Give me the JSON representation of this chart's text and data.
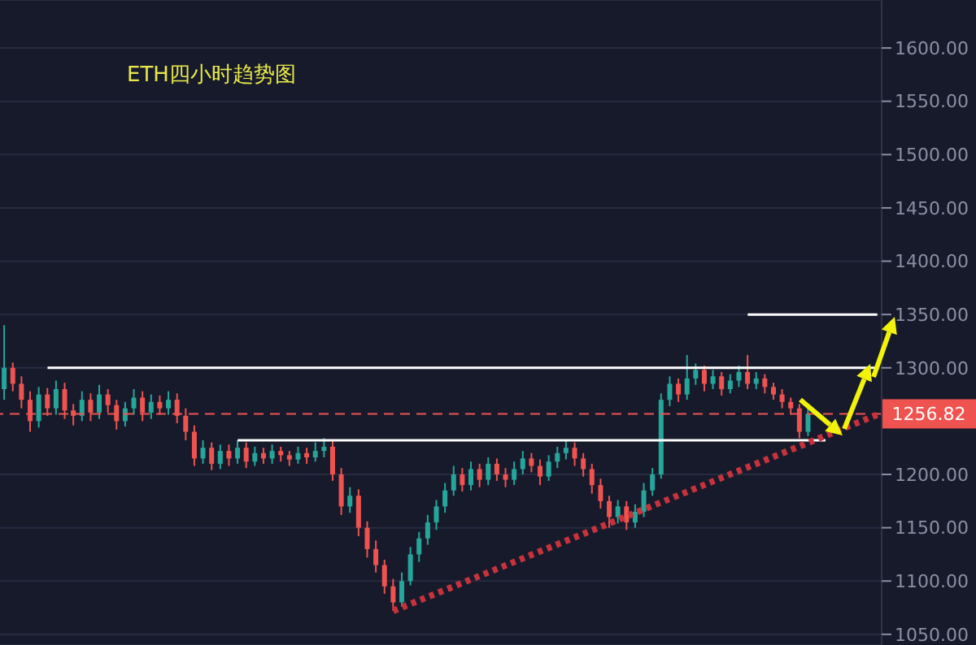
{
  "chart_data": {
    "type": "candlestick",
    "title": "ETH四小时趋势图",
    "categories": [
      null,
      null,
      null,
      null,
      null,
      null,
      null,
      null,
      null,
      null,
      null,
      null,
      null,
      null,
      null,
      null,
      null,
      null,
      null,
      null,
      null,
      null,
      null,
      null,
      null,
      null,
      null,
      null,
      null,
      null,
      null,
      null,
      null,
      null,
      null,
      null,
      null,
      null,
      null,
      null,
      null,
      null,
      null,
      null,
      null,
      null,
      null,
      null,
      null,
      null,
      null,
      null,
      null,
      null,
      null,
      null,
      null,
      null,
      null,
      null,
      null,
      null,
      null,
      null,
      null,
      null,
      null,
      null,
      null,
      null,
      null,
      null,
      null,
      null,
      null,
      null,
      null,
      null,
      null,
      null,
      null,
      null,
      null,
      null,
      null,
      null,
      null,
      null,
      null,
      null,
      null,
      null,
      null,
      null,
      null,
      null,
      null,
      null,
      null,
      null,
      null,
      null
    ],
    "ohlc": [
      [
        1280,
        1340,
        1270,
        1300
      ],
      [
        1300,
        1305,
        1278,
        1285
      ],
      [
        1285,
        1292,
        1262,
        1270
      ],
      [
        1270,
        1278,
        1240,
        1250
      ],
      [
        1250,
        1282,
        1244,
        1275
      ],
      [
        1275,
        1281,
        1255,
        1262
      ],
      [
        1262,
        1288,
        1256,
        1280
      ],
      [
        1280,
        1286,
        1252,
        1260
      ],
      [
        1260,
        1266,
        1246,
        1255
      ],
      [
        1255,
        1278,
        1250,
        1270
      ],
      [
        1270,
        1276,
        1250,
        1258
      ],
      [
        1258,
        1284,
        1252,
        1275
      ],
      [
        1275,
        1280,
        1258,
        1265
      ],
      [
        1265,
        1270,
        1242,
        1250
      ],
      [
        1250,
        1268,
        1245,
        1262
      ],
      [
        1262,
        1280,
        1256,
        1272
      ],
      [
        1272,
        1278,
        1250,
        1258
      ],
      [
        1258,
        1275,
        1252,
        1268
      ],
      [
        1268,
        1274,
        1256,
        1262
      ],
      [
        1262,
        1278,
        1256,
        1270
      ],
      [
        1270,
        1276,
        1248,
        1255
      ],
      [
        1255,
        1262,
        1232,
        1240
      ],
      [
        1240,
        1246,
        1208,
        1215
      ],
      [
        1215,
        1232,
        1210,
        1225
      ],
      [
        1225,
        1230,
        1204,
        1210
      ],
      [
        1210,
        1228,
        1205,
        1222
      ],
      [
        1222,
        1228,
        1208,
        1215
      ],
      [
        1215,
        1232,
        1210,
        1225
      ],
      [
        1225,
        1230,
        1206,
        1212
      ],
      [
        1212,
        1226,
        1208,
        1220
      ],
      [
        1220,
        1225,
        1210,
        1215
      ],
      [
        1215,
        1228,
        1210,
        1222
      ],
      [
        1222,
        1226,
        1212,
        1218
      ],
      [
        1218,
        1222,
        1208,
        1214
      ],
      [
        1214,
        1226,
        1210,
        1220
      ],
      [
        1220,
        1225,
        1210,
        1216
      ],
      [
        1216,
        1230,
        1212,
        1222
      ],
      [
        1222,
        1234,
        1216,
        1226
      ],
      [
        1226,
        1232,
        1194,
        1200
      ],
      [
        1200,
        1206,
        1162,
        1170
      ],
      [
        1170,
        1188,
        1164,
        1180
      ],
      [
        1180,
        1186,
        1142,
        1150
      ],
      [
        1150,
        1156,
        1122,
        1130
      ],
      [
        1130,
        1138,
        1108,
        1115
      ],
      [
        1115,
        1120,
        1088,
        1095
      ],
      [
        1095,
        1102,
        1072,
        1080
      ],
      [
        1080,
        1108,
        1076,
        1100
      ],
      [
        1100,
        1132,
        1096,
        1125
      ],
      [
        1125,
        1146,
        1118,
        1140
      ],
      [
        1140,
        1162,
        1134,
        1155
      ],
      [
        1155,
        1176,
        1148,
        1170
      ],
      [
        1170,
        1192,
        1164,
        1185
      ],
      [
        1185,
        1208,
        1180,
        1200
      ],
      [
        1200,
        1206,
        1184,
        1190
      ],
      [
        1190,
        1212,
        1185,
        1205
      ],
      [
        1205,
        1210,
        1188,
        1195
      ],
      [
        1195,
        1216,
        1190,
        1210
      ],
      [
        1210,
        1215,
        1194,
        1200
      ],
      [
        1200,
        1206,
        1188,
        1195
      ],
      [
        1195,
        1212,
        1190,
        1205
      ],
      [
        1205,
        1222,
        1200,
        1215
      ],
      [
        1215,
        1220,
        1202,
        1208
      ],
      [
        1208,
        1214,
        1190,
        1198
      ],
      [
        1198,
        1218,
        1194,
        1212
      ],
      [
        1212,
        1226,
        1206,
        1220
      ],
      [
        1220,
        1232,
        1214,
        1225
      ],
      [
        1225,
        1230,
        1208,
        1215
      ],
      [
        1215,
        1220,
        1198,
        1205
      ],
      [
        1205,
        1210,
        1182,
        1190
      ],
      [
        1190,
        1196,
        1168,
        1175
      ],
      [
        1175,
        1180,
        1150,
        1160
      ],
      [
        1160,
        1176,
        1154,
        1170
      ],
      [
        1170,
        1175,
        1148,
        1155
      ],
      [
        1155,
        1172,
        1150,
        1165
      ],
      [
        1165,
        1192,
        1160,
        1185
      ],
      [
        1185,
        1206,
        1180,
        1200
      ],
      [
        1200,
        1276,
        1196,
        1270
      ],
      [
        1270,
        1292,
        1264,
        1285
      ],
      [
        1285,
        1290,
        1268,
        1275
      ],
      [
        1275,
        1312,
        1270,
        1290
      ],
      [
        1290,
        1304,
        1284,
        1298
      ],
      [
        1298,
        1302,
        1278,
        1285
      ],
      [
        1285,
        1298,
        1280,
        1292
      ],
      [
        1292,
        1296,
        1274,
        1280
      ],
      [
        1280,
        1294,
        1276,
        1288
      ],
      [
        1288,
        1302,
        1282,
        1296
      ],
      [
        1296,
        1312,
        1280,
        1285
      ],
      [
        1285,
        1296,
        1280,
        1290
      ],
      [
        1290,
        1294,
        1276,
        1282
      ],
      [
        1282,
        1286,
        1270,
        1275
      ],
      [
        1275,
        1280,
        1262,
        1268
      ],
      [
        1268,
        1272,
        1256,
        1262
      ],
      [
        1262,
        1266,
        1234,
        1240
      ],
      [
        1240,
        1262,
        1236,
        1257
      ],
      null,
      null,
      null,
      null,
      null,
      null,
      null,
      null
    ],
    "series": [
      {
        "type": "line",
        "color": "#ffffff",
        "values": [
          null,
          null,
          null,
          null,
          null,
          1300,
          null,
          null,
          null,
          null,
          null,
          null,
          null,
          null,
          null,
          null,
          null,
          null,
          null,
          null,
          null,
          null,
          null,
          null,
          null,
          null,
          null,
          null,
          null,
          null,
          null,
          null,
          null,
          null,
          null,
          null,
          null,
          null,
          null,
          null,
          null,
          null,
          null,
          null,
          null,
          null,
          null,
          null,
          null,
          null,
          null,
          null,
          null,
          null,
          null,
          null,
          null,
          null,
          null,
          null,
          null,
          null,
          null,
          null,
          null,
          null,
          null,
          null,
          null,
          null,
          null,
          null,
          null,
          null,
          null,
          null,
          null,
          null,
          null,
          null,
          null,
          null,
          null,
          null,
          null,
          null,
          null,
          null,
          null,
          null,
          null,
          null,
          null,
          null,
          null,
          null,
          null,
          null,
          null,
          null,
          null,
          1300
        ]
      },
      {
        "type": "line",
        "color": "#ffffff",
        "values": [
          null,
          null,
          null,
          null,
          null,
          null,
          null,
          null,
          null,
          null,
          null,
          null,
          null,
          null,
          null,
          null,
          null,
          null,
          null,
          null,
          null,
          null,
          null,
          null,
          null,
          null,
          null,
          1232,
          null,
          null,
          null,
          null,
          null,
          null,
          null,
          null,
          null,
          null,
          null,
          null,
          null,
          null,
          null,
          null,
          null,
          null,
          null,
          null,
          null,
          null,
          null,
          null,
          null,
          null,
          null,
          null,
          null,
          null,
          null,
          null,
          null,
          null,
          null,
          null,
          null,
          null,
          null,
          null,
          null,
          null,
          null,
          null,
          null,
          null,
          null,
          null,
          null,
          null,
          null,
          null,
          null,
          null,
          null,
          null,
          null,
          null,
          null,
          null,
          null,
          null,
          null,
          null,
          null,
          null,
          null,
          1232,
          null,
          null,
          null,
          null,
          null,
          null
        ]
      },
      {
        "type": "line",
        "color": "#ffffff",
        "values": [
          null,
          null,
          null,
          null,
          null,
          null,
          null,
          null,
          null,
          null,
          null,
          null,
          null,
          null,
          null,
          null,
          null,
          null,
          null,
          null,
          null,
          null,
          null,
          null,
          null,
          null,
          null,
          null,
          null,
          null,
          null,
          null,
          null,
          null,
          null,
          null,
          null,
          null,
          null,
          null,
          null,
          null,
          null,
          null,
          null,
          null,
          null,
          null,
          null,
          null,
          null,
          null,
          null,
          null,
          null,
          null,
          null,
          null,
          null,
          null,
          null,
          null,
          null,
          null,
          null,
          null,
          null,
          null,
          null,
          null,
          null,
          null,
          null,
          null,
          null,
          null,
          null,
          null,
          null,
          null,
          null,
          null,
          null,
          null,
          null,
          null,
          1350,
          null,
          null,
          null,
          null,
          null,
          null,
          null,
          null,
          null,
          null,
          null,
          null,
          null,
          null,
          1350
        ]
      },
      {
        "type": "line",
        "color": "#c8323c",
        "line_style": "dotted",
        "values": [
          null,
          null,
          null,
          null,
          null,
          null,
          null,
          null,
          null,
          null,
          null,
          null,
          null,
          null,
          null,
          null,
          null,
          null,
          null,
          null,
          null,
          null,
          null,
          null,
          null,
          null,
          null,
          null,
          null,
          null,
          null,
          null,
          null,
          null,
          null,
          null,
          null,
          null,
          null,
          null,
          null,
          null,
          null,
          null,
          null,
          1072,
          null,
          null,
          null,
          null,
          null,
          null,
          null,
          null,
          null,
          null,
          null,
          null,
          null,
          null,
          null,
          null,
          null,
          null,
          null,
          null,
          null,
          null,
          null,
          null,
          null,
          null,
          null,
          null,
          null,
          null,
          null,
          null,
          null,
          null,
          null,
          null,
          null,
          null,
          null,
          null,
          null,
          null,
          null,
          null,
          null,
          null,
          null,
          null,
          null,
          null,
          null,
          null,
          null,
          null,
          null,
          1256
        ]
      }
    ],
    "ref_lines": [
      {
        "axis": "y",
        "value": 1256.82,
        "label": "1256.82",
        "color": "#ef5350",
        "line_style": "dashed"
      }
    ],
    "ylim": [
      1040,
      1645
    ],
    "yticks": [
      {
        "value": 1050,
        "label": "1050.00"
      },
      {
        "value": 1100,
        "label": "1100.00"
      },
      {
        "value": 1150,
        "label": "1150.00"
      },
      {
        "value": 1200,
        "label": "1200.00"
      },
      {
        "value": 1300,
        "label": "1300.00"
      },
      {
        "value": 1350,
        "label": "1350.00"
      },
      {
        "value": 1400,
        "label": "1400.00"
      },
      {
        "value": 1450,
        "label": "1450.00"
      },
      {
        "value": 1500,
        "label": "1500.00"
      },
      {
        "value": 1550,
        "label": "1550.00"
      },
      {
        "value": 1600,
        "label": "1600.00"
      }
    ],
    "grid": "y",
    "tick_labels": "y"
  }
}
